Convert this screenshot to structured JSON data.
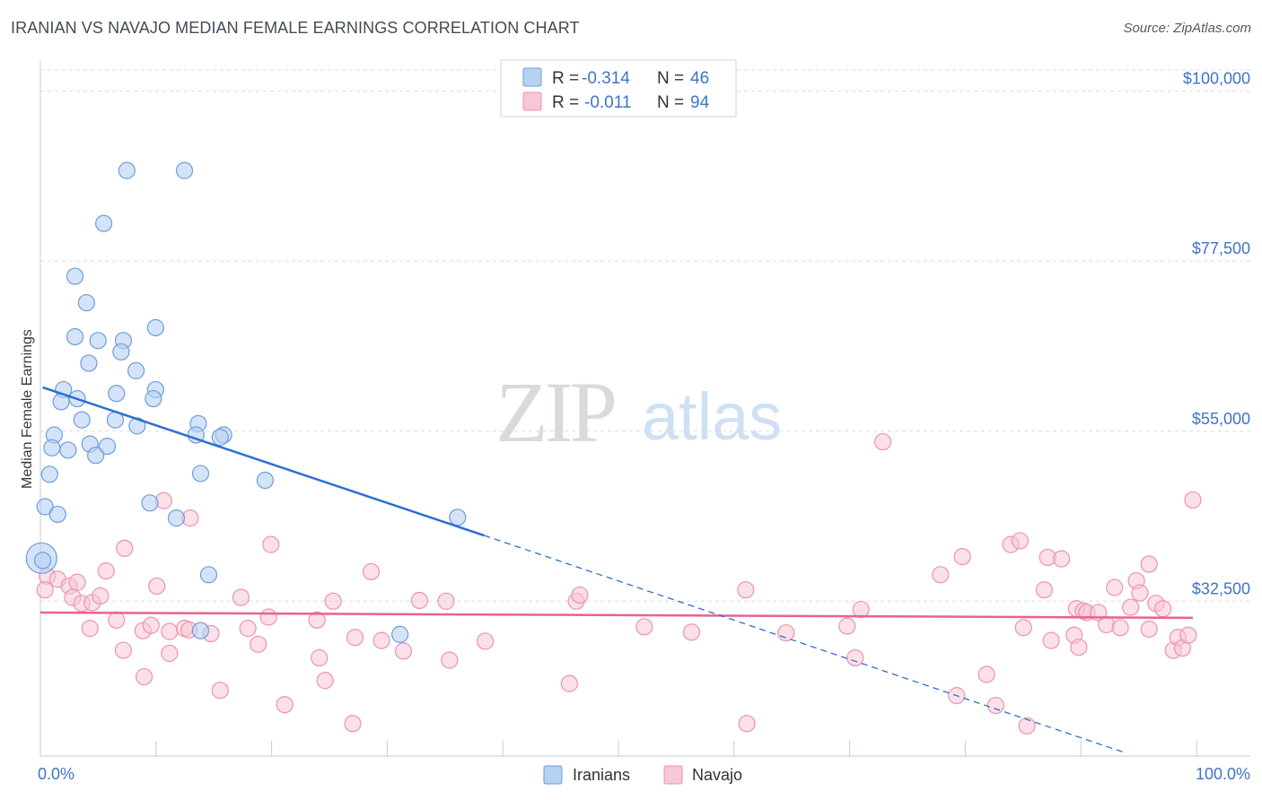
{
  "header": {
    "title": "IRANIAN VS NAVAJO MEDIAN FEMALE EARNINGS CORRELATION CHART",
    "source": "Source: ZipAtlas.com"
  },
  "watermark": {
    "zip": "ZIP",
    "atlas": "atlas"
  },
  "legend": {
    "r_label": "R =",
    "n_label": "N =",
    "iranians": {
      "r": "-0.314",
      "n": "46"
    },
    "navajo": {
      "r": "-0.011",
      "n": "94"
    }
  },
  "bottom_legend": {
    "iranians": "Iranians",
    "navajo": "Navajo"
  },
  "chart_data": {
    "type": "scatter",
    "title": "IRANIAN VS NAVAJO MEDIAN FEMALE EARNINGS CORRELATION CHART",
    "xlabel": "",
    "ylabel": "Median Female Earnings",
    "xlim": [
      0,
      100
    ],
    "ylim": [
      12000,
      104000
    ],
    "x_tick_labels": [
      "0.0%",
      "100.0%"
    ],
    "y_ticks": [
      {
        "value": 100000,
        "label": "$100,000"
      },
      {
        "value": 77500,
        "label": "$77,500"
      },
      {
        "value": 55000,
        "label": "$55,000"
      },
      {
        "value": 32500,
        "label": "$32,500"
      }
    ],
    "colors": {
      "iranians_fill": "#b7d1f3",
      "iranians_stroke": "#6c9edb",
      "iranians_line": "#2e6fcf",
      "navajo_fill": "#f8c6d4",
      "navajo_stroke": "#ec93ad",
      "navajo_line": "#e8638d",
      "grid": "#d8dde3",
      "axis": "#c6ccd3",
      "tick_text": "#3f74c6"
    },
    "series": [
      {
        "name": "Iranians",
        "r": -0.314,
        "n": 46,
        "trend": {
          "x0": 0.2,
          "y0": 60800,
          "x1": 38.5,
          "y1": 41200,
          "dash_x1": 94,
          "dash_y1": 12500
        },
        "points": [
          [
            7.5,
            89500
          ],
          [
            12.5,
            89500
          ],
          [
            5.5,
            82500
          ],
          [
            3,
            75500
          ],
          [
            4,
            72000
          ],
          [
            10,
            68700
          ],
          [
            3,
            67500
          ],
          [
            5,
            67000
          ],
          [
            7.2,
            67000
          ],
          [
            7,
            65500
          ],
          [
            4.2,
            64000
          ],
          [
            8.3,
            63000
          ],
          [
            2,
            60500
          ],
          [
            10,
            60500
          ],
          [
            6.6,
            60000
          ],
          [
            3.2,
            59300
          ],
          [
            1.8,
            58900
          ],
          [
            9.8,
            59300
          ],
          [
            3.6,
            56500
          ],
          [
            6.5,
            56500
          ],
          [
            8.4,
            55700
          ],
          [
            13.7,
            56000
          ],
          [
            1.2,
            54500
          ],
          [
            13.5,
            54500
          ],
          [
            15.9,
            54500
          ],
          [
            15.6,
            54200
          ],
          [
            4.3,
            53300
          ],
          [
            5.8,
            53000
          ],
          [
            1,
            52800
          ],
          [
            2.4,
            52500
          ],
          [
            4.8,
            51800
          ],
          [
            0.8,
            49300
          ],
          [
            13.9,
            49400
          ],
          [
            19.5,
            48500
          ],
          [
            0.4,
            45000
          ],
          [
            9.5,
            45500
          ],
          [
            1.5,
            44000
          ],
          [
            11.8,
            43500
          ],
          [
            36.2,
            43600
          ],
          [
            0.1,
            38200
          ],
          [
            0.2,
            37900
          ],
          [
            14.6,
            36000
          ],
          [
            13.9,
            28600
          ],
          [
            31.2,
            28100
          ]
        ]
      },
      {
        "name": "Navajo",
        "r": -0.011,
        "n": 94,
        "trend": {
          "x0": 0,
          "y0": 31000,
          "x1": 100,
          "y1": 30300
        },
        "points": [
          [
            0.6,
            35800
          ],
          [
            0.4,
            34000
          ],
          [
            1.5,
            35400
          ],
          [
            2.5,
            34500
          ],
          [
            3.2,
            35000
          ],
          [
            2.8,
            33000
          ],
          [
            3.6,
            32200
          ],
          [
            4.5,
            32300
          ],
          [
            5.2,
            33200
          ],
          [
            5.7,
            36500
          ],
          [
            7.3,
            39500
          ],
          [
            10.1,
            34500
          ],
          [
            10.7,
            45800
          ],
          [
            13,
            43500
          ],
          [
            20,
            40000
          ],
          [
            28.7,
            36400
          ],
          [
            4.3,
            28900
          ],
          [
            6.6,
            30000
          ],
          [
            8.9,
            28600
          ],
          [
            9.6,
            29300
          ],
          [
            11.2,
            28500
          ],
          [
            12.5,
            28900
          ],
          [
            12.9,
            28700
          ],
          [
            14.8,
            28200
          ],
          [
            18,
            28900
          ],
          [
            19.8,
            30400
          ],
          [
            24,
            30000
          ],
          [
            27.3,
            27700
          ],
          [
            29.6,
            27300
          ],
          [
            38.6,
            27200
          ],
          [
            17.4,
            33000
          ],
          [
            25.4,
            32500
          ],
          [
            32.9,
            32600
          ],
          [
            35.2,
            32500
          ],
          [
            46.5,
            32500
          ],
          [
            46.8,
            33300
          ],
          [
            61.2,
            34000
          ],
          [
            71.2,
            31400
          ],
          [
            7.2,
            26000
          ],
          [
            9,
            22500
          ],
          [
            11.2,
            25600
          ],
          [
            15.6,
            20700
          ],
          [
            18.9,
            26800
          ],
          [
            21.2,
            18800
          ],
          [
            24.2,
            25000
          ],
          [
            24.7,
            22000
          ],
          [
            27.1,
            16300
          ],
          [
            31.5,
            25900
          ],
          [
            35.5,
            24700
          ],
          [
            45.9,
            21600
          ],
          [
            52.4,
            29100
          ],
          [
            56.5,
            28400
          ],
          [
            61.3,
            16300
          ],
          [
            64.7,
            28300
          ],
          [
            70,
            29200
          ],
          [
            70.7,
            25000
          ],
          [
            73.1,
            53600
          ],
          [
            78.1,
            36000
          ],
          [
            80,
            38400
          ],
          [
            79.5,
            20000
          ],
          [
            82.1,
            22800
          ],
          [
            82.9,
            18700
          ],
          [
            84.2,
            40000
          ],
          [
            85.6,
            16000
          ],
          [
            85,
            40500
          ],
          [
            85.3,
            29000
          ],
          [
            87.1,
            34000
          ],
          [
            87.4,
            38300
          ],
          [
            87.7,
            27300
          ],
          [
            89.7,
            28000
          ],
          [
            89.9,
            31500
          ],
          [
            90.5,
            31200
          ],
          [
            88.6,
            38100
          ],
          [
            90.1,
            26400
          ],
          [
            90.8,
            31000
          ],
          [
            91.8,
            31000
          ],
          [
            92.5,
            29400
          ],
          [
            93.2,
            34300
          ],
          [
            93.7,
            29000
          ],
          [
            94.6,
            31700
          ],
          [
            95.1,
            35200
          ],
          [
            95.4,
            33600
          ],
          [
            96.2,
            37400
          ],
          [
            96.8,
            32200
          ],
          [
            96.2,
            28800
          ],
          [
            97.4,
            31500
          ],
          [
            98.3,
            26000
          ],
          [
            98.7,
            27700
          ],
          [
            99.1,
            26300
          ],
          [
            99.6,
            28000
          ],
          [
            100,
            45900
          ]
        ]
      }
    ]
  }
}
